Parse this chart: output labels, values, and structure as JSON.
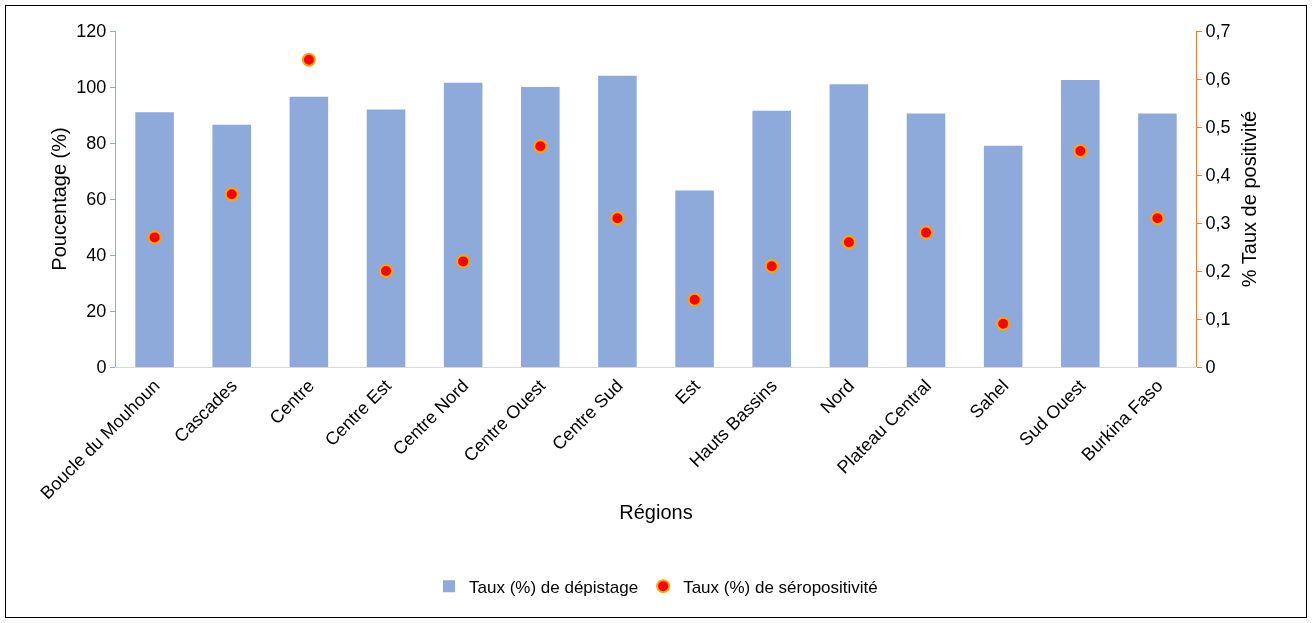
{
  "chart_data": {
    "type": "bar",
    "xlabel": "Régions",
    "ylabel": "Poucentage (%)",
    "y2label": "% Taux de positivité",
    "categories": [
      "Boucle du Mouhoun",
      "Cascades",
      "Centre",
      "Centre Est",
      "Centre Nord",
      "Centre Ouest",
      "Centre Sud",
      "Est",
      "Hauts Bassins",
      "Nord",
      "Plateau Central",
      "Sahel",
      "Sud Ouest",
      "Burkina Faso"
    ],
    "series": [
      {
        "name": "Taux (%) de dépistage",
        "color": "#8eaadb",
        "values": [
          91,
          86.5,
          96.5,
          92,
          101.5,
          100,
          104,
          63,
          91.5,
          101,
          90.5,
          79,
          102.5,
          90.5
        ]
      },
      {
        "name": "Taux (%) de séropositivité",
        "type": "scatter",
        "axis": "y2",
        "color": "#ff0000",
        "values": [
          0.27,
          0.36,
          0.64,
          0.2,
          0.22,
          0.46,
          0.31,
          0.14,
          0.21,
          0.26,
          0.28,
          0.09,
          0.45,
          0.31
        ]
      }
    ],
    "ylim": [
      0,
      120
    ],
    "yticks": [
      0,
      20,
      40,
      60,
      80,
      100,
      120
    ],
    "y2lim": [
      0,
      0.7
    ],
    "y2ticks": [
      0,
      {
        "value": 0.1,
        "label": "0,1"
      },
      {
        "value": 0.2,
        "label": "0,2"
      },
      {
        "value": 0.3,
        "label": "0,3"
      },
      {
        "value": 0.4,
        "label": "0,4"
      },
      {
        "value": 0.5,
        "label": "0,5"
      },
      {
        "value": 0.6,
        "label": "0,6"
      },
      {
        "value": 0.7,
        "label": "0,7"
      }
    ],
    "marker": "circle",
    "grid": false,
    "legend": "bottom"
  }
}
